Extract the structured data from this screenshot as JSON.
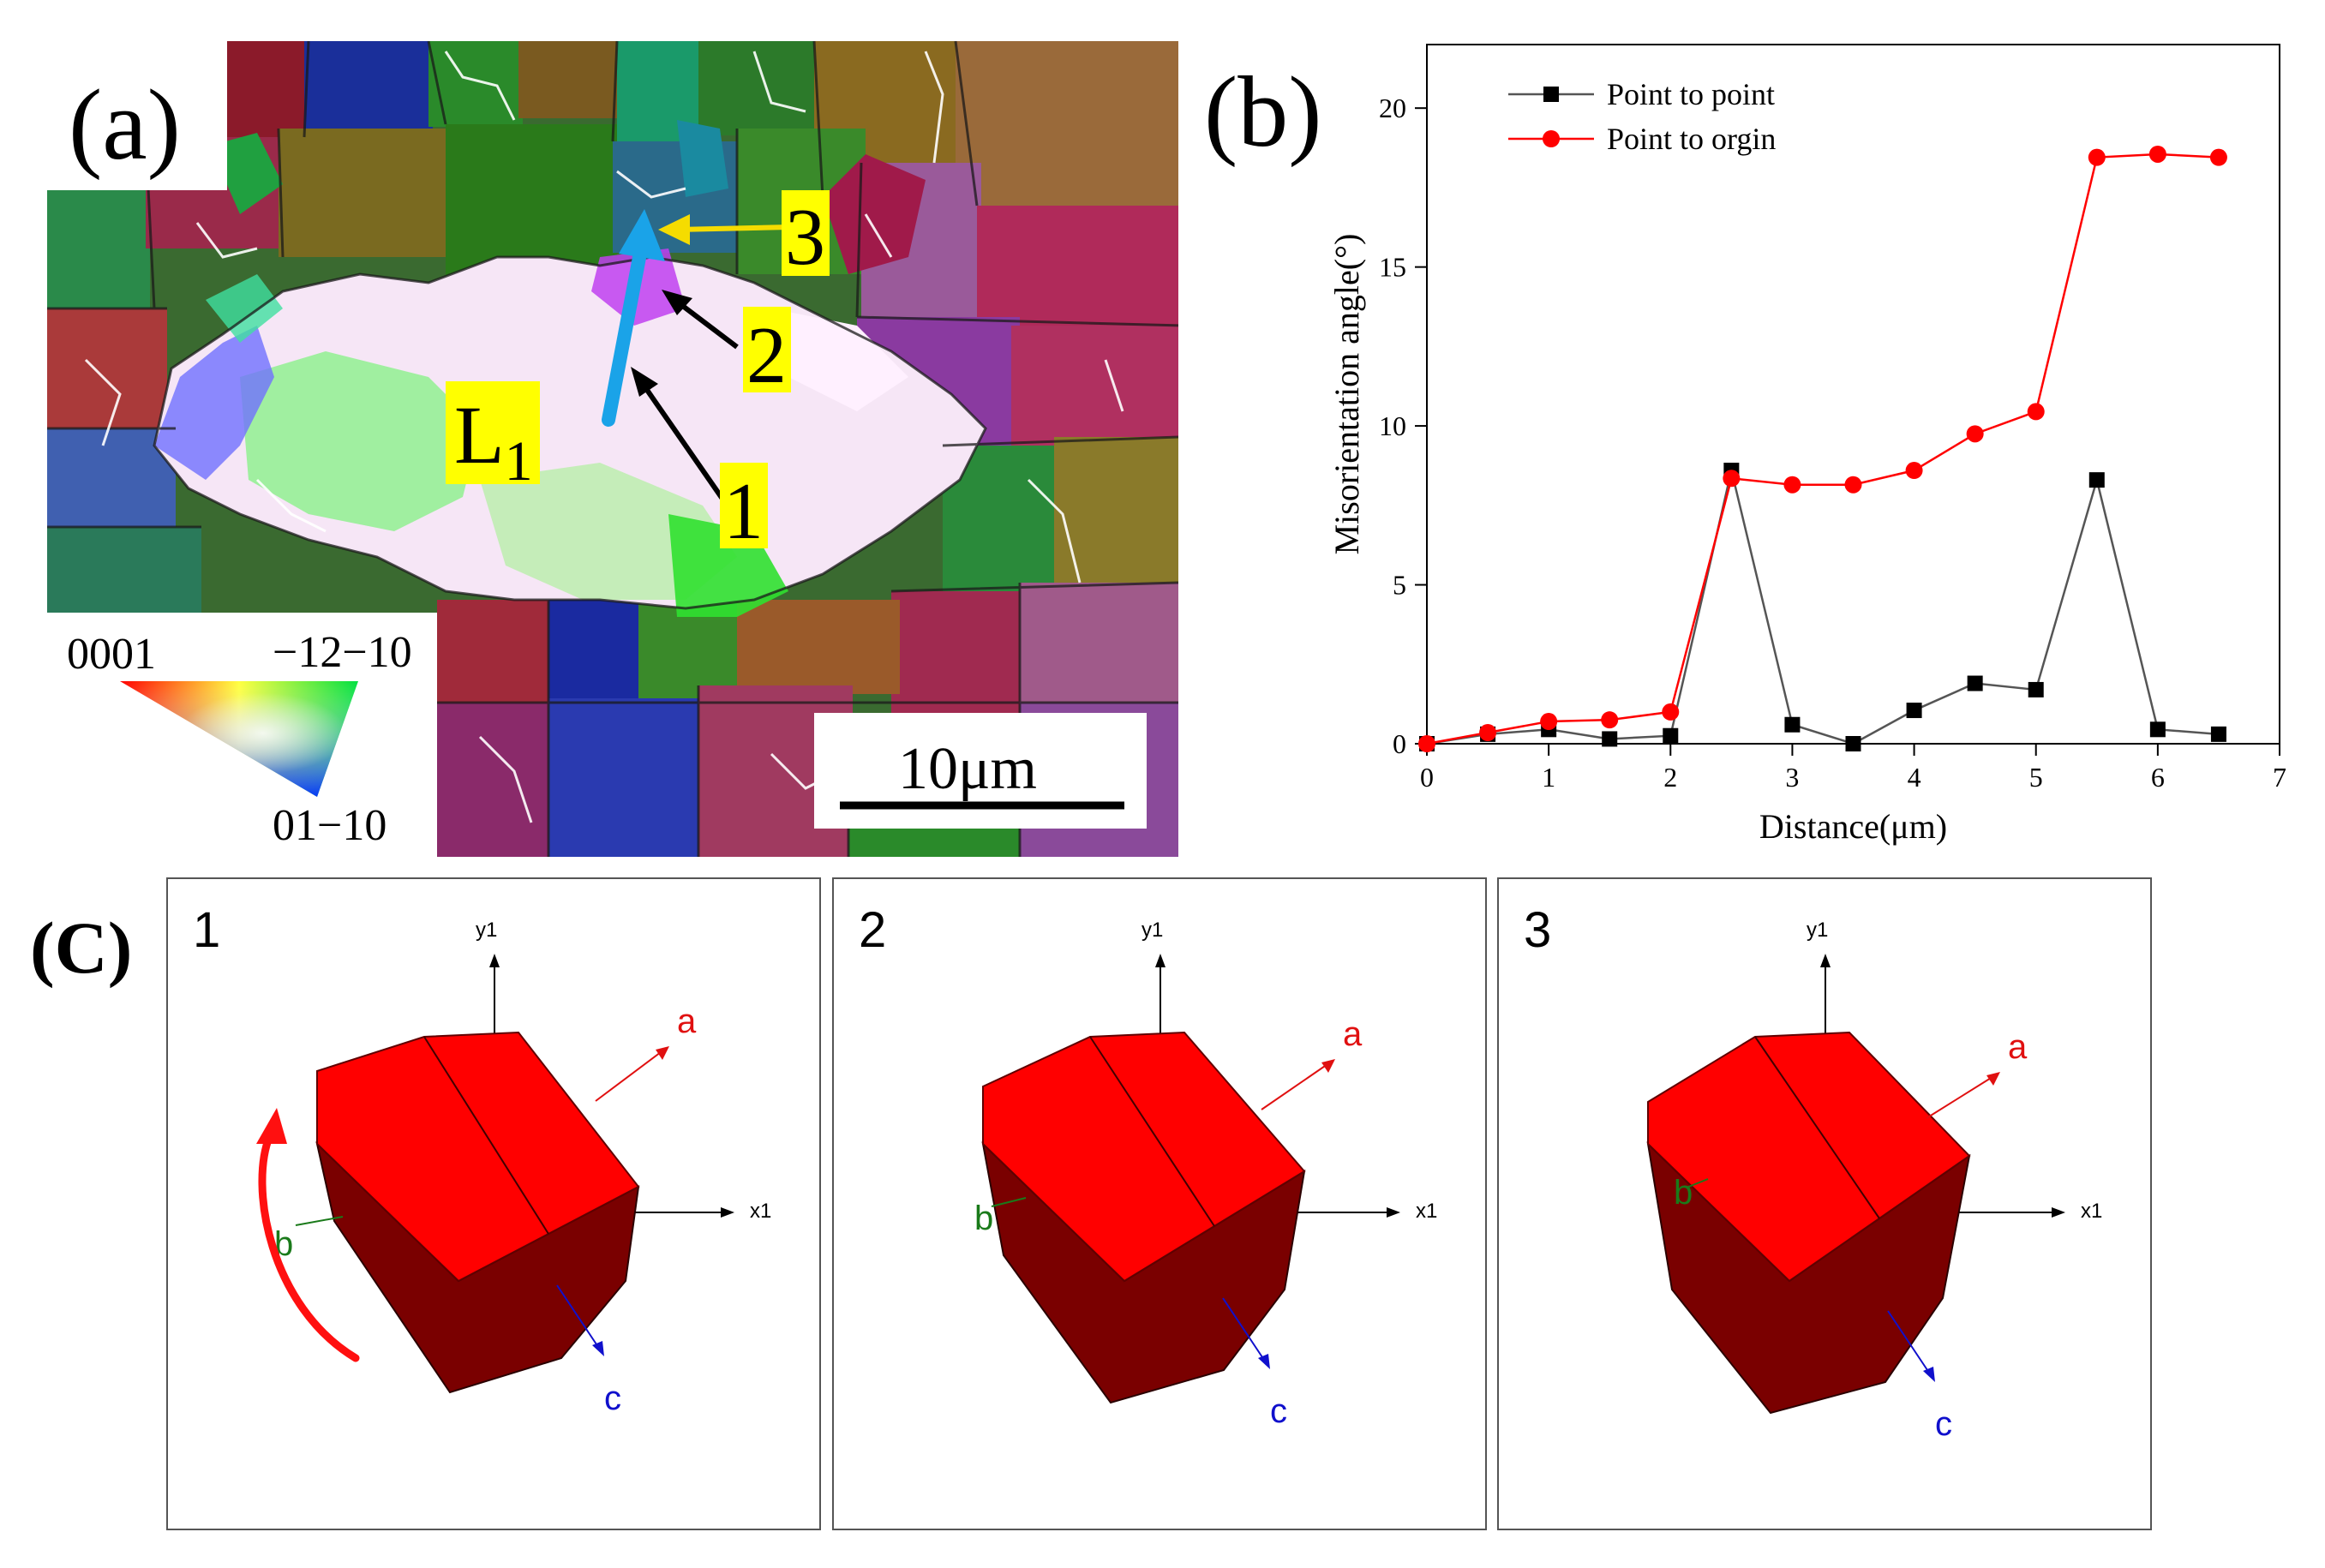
{
  "panel_a": {
    "label": "(a)",
    "region_label": "L",
    "region_subscript": "1",
    "markers": [
      "1",
      "2",
      "3"
    ],
    "legend": {
      "corner_0001": "0001",
      "corner_a": "−12−10",
      "corner_b": "01−10"
    },
    "scale_bar": "10μm",
    "colors": {
      "marker_bg": "#ffff00",
      "arrow_path": "#1aa3e8",
      "arrow_3": "#f5dc00",
      "boundary": "#ffffff"
    }
  },
  "panel_b": {
    "label": "(b)"
  },
  "chart_data": {
    "type": "line",
    "title": "",
    "xlabel": "Distance(μm)",
    "ylabel": "Misorientation angle(°)",
    "xlim": [
      0,
      7
    ],
    "ylim": [
      0,
      22
    ],
    "xticks": [
      0,
      1,
      2,
      3,
      4,
      5,
      6,
      7
    ],
    "yticks": [
      0,
      5,
      10,
      15,
      20
    ],
    "legend_position": "top-left",
    "x": [
      0,
      0.5,
      1.0,
      1.5,
      2.0,
      2.5,
      3.0,
      3.5,
      4.0,
      4.5,
      5.0,
      5.5,
      6.0,
      6.5
    ],
    "series": [
      {
        "name": "Point to point",
        "marker": "square",
        "color": "#000000",
        "line_color": "#555555",
        "values": [
          0,
          0.3,
          0.45,
          0.15,
          0.25,
          8.6,
          0.6,
          0.0,
          1.05,
          1.9,
          1.7,
          8.3,
          0.45,
          0.3
        ]
      },
      {
        "name": "Point to orgin",
        "marker": "circle",
        "color": "#ff0000",
        "line_color": "#ff0000",
        "values": [
          0,
          0.35,
          0.7,
          0.75,
          1.0,
          8.35,
          8.15,
          8.15,
          8.6,
          9.75,
          10.45,
          18.45,
          18.55,
          18.45
        ]
      }
    ]
  },
  "panel_c": {
    "label": "(C)",
    "colors": {
      "crystal_top": "#ff0000",
      "crystal_side": "#7a0000",
      "axis_a": "#e01010",
      "axis_b": "#1a7a1a",
      "axis_c": "#1010cc",
      "rotation_arrow": "#ff1010"
    },
    "boxes": [
      {
        "number": "1",
        "y_axis": "y1",
        "x_axis": "x1",
        "a": "a",
        "b": "b",
        "c": "c"
      },
      {
        "number": "2",
        "y_axis": "y1",
        "x_axis": "x1",
        "a": "a",
        "b": "b",
        "c": "c"
      },
      {
        "number": "3",
        "y_axis": "y1",
        "x_axis": "x1",
        "a": "a",
        "b": "b",
        "c": "c"
      }
    ]
  }
}
